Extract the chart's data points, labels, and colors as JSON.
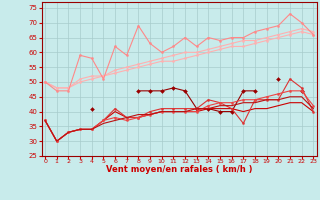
{
  "x": [
    0,
    1,
    2,
    3,
    4,
    5,
    6,
    7,
    8,
    9,
    10,
    11,
    12,
    13,
    14,
    15,
    16,
    17,
    18,
    19,
    20,
    21,
    22,
    23
  ],
  "series": [
    {
      "label": "pink_smooth1",
      "color": "#FFB0B0",
      "linewidth": 0.8,
      "marker": "o",
      "markersize": 1.5,
      "y": [
        50,
        48,
        48,
        50,
        51,
        52,
        53,
        54,
        55,
        56,
        57,
        57,
        58,
        59,
        60,
        61,
        62,
        62,
        63,
        64,
        65,
        66,
        67,
        66
      ]
    },
    {
      "label": "pink_smooth2",
      "color": "#FFB0B0",
      "linewidth": 0.8,
      "marker": "o",
      "markersize": 1.5,
      "y": [
        50,
        48,
        48,
        51,
        52,
        52,
        54,
        55,
        56,
        57,
        58,
        59,
        60,
        60,
        61,
        62,
        63,
        64,
        64,
        65,
        66,
        67,
        68,
        67
      ]
    },
    {
      "label": "pink_zigzag",
      "color": "#FF8888",
      "linewidth": 0.8,
      "marker": "o",
      "markersize": 1.5,
      "y": [
        50,
        47,
        47,
        59,
        58,
        51,
        62,
        59,
        69,
        63,
        60,
        62,
        65,
        62,
        65,
        64,
        65,
        65,
        67,
        68,
        69,
        73,
        70,
        66
      ]
    },
    {
      "label": "dark_red_marker",
      "color": "#990000",
      "linewidth": 0.8,
      "marker": "D",
      "markersize": 2,
      "y": [
        null,
        null,
        null,
        null,
        41,
        null,
        null,
        null,
        47,
        47,
        47,
        48,
        47,
        41,
        41,
        40,
        40,
        47,
        47,
        null,
        51,
        null,
        47,
        null
      ]
    },
    {
      "label": "red_flat",
      "color": "#CC0000",
      "linewidth": 0.8,
      "marker": null,
      "y": [
        37,
        30,
        33,
        34,
        34,
        37,
        40,
        38,
        38,
        39,
        40,
        40,
        40,
        40,
        41,
        41,
        41,
        40,
        41,
        41,
        42,
        43,
        43,
        40
      ]
    },
    {
      "label": "red_upward",
      "color": "#DD3333",
      "linewidth": 0.8,
      "marker": "o",
      "markersize": 1.5,
      "y": [
        37,
        30,
        33,
        34,
        34,
        37,
        41,
        38,
        38,
        40,
        41,
        41,
        41,
        41,
        44,
        43,
        41,
        36,
        44,
        44,
        44,
        51,
        48,
        40
      ]
    },
    {
      "label": "red_upward2",
      "color": "#EE4444",
      "linewidth": 0.8,
      "marker": "o",
      "markersize": 1.5,
      "y": [
        37,
        30,
        33,
        34,
        34,
        37,
        38,
        37,
        38,
        39,
        40,
        40,
        40,
        40,
        42,
        43,
        43,
        44,
        44,
        45,
        46,
        47,
        47,
        42
      ]
    },
    {
      "label": "red_linear",
      "color": "#BB1111",
      "linewidth": 0.8,
      "marker": null,
      "y": [
        37,
        30,
        33,
        34,
        34,
        36,
        37,
        38,
        39,
        39,
        40,
        40,
        40,
        41,
        41,
        42,
        42,
        43,
        43,
        44,
        44,
        45,
        45,
        41
      ]
    }
  ],
  "xlim": [
    -0.3,
    23.3
  ],
  "ylim": [
    25,
    77
  ],
  "yticks": [
    25,
    30,
    35,
    40,
    45,
    50,
    55,
    60,
    65,
    70,
    75
  ],
  "xticks": [
    0,
    1,
    2,
    3,
    4,
    5,
    6,
    7,
    8,
    9,
    10,
    11,
    12,
    13,
    14,
    15,
    16,
    17,
    18,
    19,
    20,
    21,
    22,
    23
  ],
  "xlabel": "Vent moyen/en rafales ( km/h )",
  "background_color": "#C8EBEB",
  "grid_color": "#A8CCCC",
  "tick_color": "#CC0000",
  "label_color": "#CC0000",
  "axis_color": "#990000"
}
